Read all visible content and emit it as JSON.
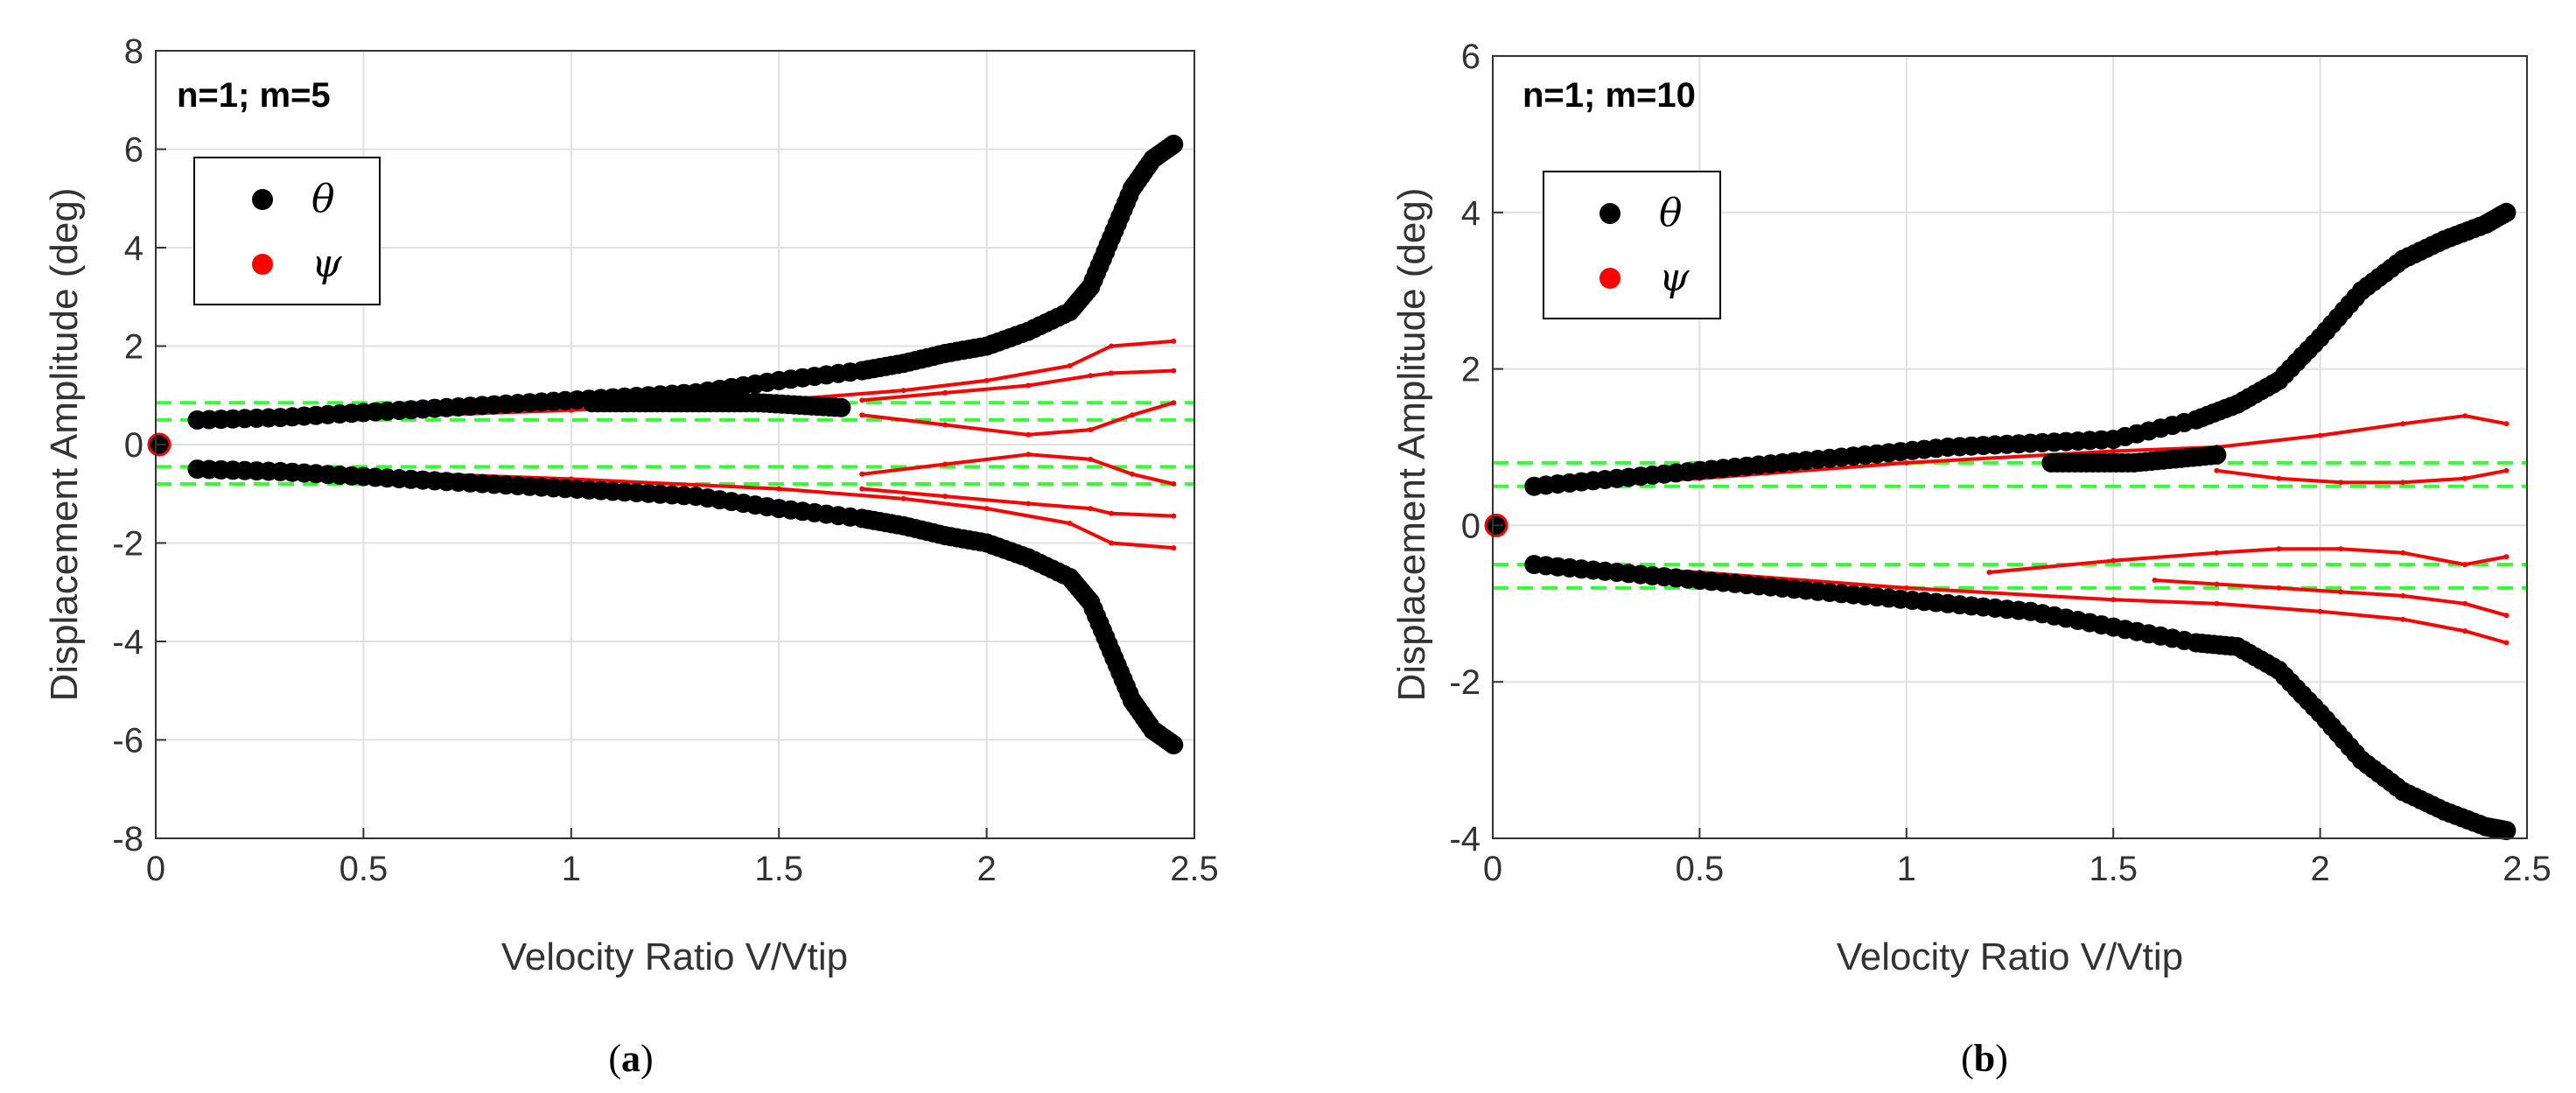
{
  "colors": {
    "theta": "#000000",
    "psi": "#ff0000",
    "bound": "#33ff33",
    "grid": "#e0e0e0",
    "axis": "#333333"
  },
  "chart_data": [
    {
      "type": "scatter",
      "panel_label": "a",
      "annotation": "n=1; m=5",
      "xlabel": "Velocity Ratio V/Vtip",
      "ylabel": "Displacement Amplitude (deg)",
      "xlim": [
        0,
        2.5
      ],
      "ylim": [
        -8,
        8
      ],
      "xticks": [
        0,
        0.5,
        1,
        1.5,
        2,
        2.5
      ],
      "xtick_labels": [
        "0",
        "0.5",
        "1",
        "1.5",
        "2",
        "2.5"
      ],
      "yticks": [
        -8,
        -6,
        -4,
        -2,
        0,
        2,
        4,
        6,
        8
      ],
      "ytick_labels": [
        "-8",
        "-6",
        "-4",
        "-2",
        "0",
        "2",
        "4",
        "6",
        "8"
      ],
      "grid": true,
      "legend": {
        "position": "upper-left",
        "entries": [
          "θ",
          "ψ"
        ]
      },
      "green_dashed_levels": [
        0.85,
        0.5,
        -0.45,
        -0.8
      ],
      "series": [
        {
          "name": "θ",
          "color": "#000000",
          "marker": "circle",
          "curves": [
            {
              "x": [
                0.1,
                0.3,
                0.5,
                0.7,
                0.9,
                1.1,
                1.3,
                1.5,
                1.7,
                1.8,
                1.9,
                2.0,
                2.1,
                2.2,
                2.25,
                2.3,
                2.35,
                2.4,
                2.45
              ],
              "y": [
                0.5,
                0.55,
                0.65,
                0.75,
                0.85,
                0.95,
                1.05,
                1.3,
                1.5,
                1.65,
                1.85,
                2.0,
                2.3,
                2.7,
                3.2,
                4.2,
                5.2,
                5.8,
                6.1
              ]
            },
            {
              "x": [
                0.1,
                0.3,
                0.5,
                0.7,
                0.9,
                1.1,
                1.3,
                1.5,
                1.7,
                1.8,
                1.9,
                2.0,
                2.1,
                2.2,
                2.25,
                2.3,
                2.35,
                2.4,
                2.45
              ],
              "y": [
                -0.5,
                -0.55,
                -0.65,
                -0.75,
                -0.85,
                -0.95,
                -1.05,
                -1.3,
                -1.5,
                -1.65,
                -1.85,
                -2.0,
                -2.3,
                -2.7,
                -3.2,
                -4.2,
                -5.2,
                -5.8,
                -6.1
              ]
            },
            {
              "x": [
                1.05,
                1.15,
                1.25,
                1.35,
                1.45,
                1.55,
                1.65
              ],
              "y": [
                0.85,
                0.85,
                0.85,
                0.85,
                0.85,
                0.8,
                0.75
              ]
            }
          ]
        },
        {
          "name": "ψ",
          "color": "#ff0000",
          "marker": "line",
          "curves": [
            {
              "x": [
                0.1,
                0.5,
                1.0,
                1.5,
                1.8,
                2.0,
                2.2,
                2.3,
                2.45
              ],
              "y": [
                0.5,
                0.55,
                0.7,
                0.9,
                1.1,
                1.3,
                1.6,
                2.0,
                2.1
              ]
            },
            {
              "x": [
                1.7,
                1.9,
                2.1,
                2.25,
                2.3,
                2.45
              ],
              "y": [
                0.9,
                1.05,
                1.2,
                1.4,
                1.45,
                1.5
              ]
            },
            {
              "x": [
                1.7,
                1.9,
                2.1,
                2.25,
                2.35,
                2.45
              ],
              "y": [
                0.6,
                0.4,
                0.2,
                0.3,
                0.6,
                0.85
              ]
            },
            {
              "x": [
                0.1,
                0.5,
                1.0,
                1.5,
                1.8,
                2.0,
                2.2,
                2.3,
                2.45
              ],
              "y": [
                -0.5,
                -0.55,
                -0.7,
                -0.9,
                -1.1,
                -1.3,
                -1.6,
                -2.0,
                -2.1
              ]
            },
            {
              "x": [
                1.7,
                1.9,
                2.1,
                2.25,
                2.3,
                2.45
              ],
              "y": [
                -0.9,
                -1.05,
                -1.2,
                -1.3,
                -1.4,
                -1.45
              ]
            },
            {
              "x": [
                1.7,
                1.9,
                2.1,
                2.25,
                2.35,
                2.45
              ],
              "y": [
                -0.6,
                -0.4,
                -0.2,
                -0.3,
                -0.6,
                -0.8
              ]
            }
          ]
        }
      ]
    },
    {
      "type": "scatter",
      "panel_label": "b",
      "annotation": "n=1; m=10",
      "xlabel": "Velocity Ratio V/Vtip",
      "ylabel": "Displacement Amplitude (deg)",
      "xlim": [
        0,
        2.5
      ],
      "ylim": [
        -4,
        6
      ],
      "xticks": [
        0,
        0.5,
        1,
        1.5,
        2,
        2.5
      ],
      "xtick_labels": [
        "0",
        "0.5",
        "1",
        "1.5",
        "2",
        "2.5"
      ],
      "yticks": [
        -4,
        -2,
        0,
        2,
        4,
        6
      ],
      "ytick_labels": [
        "-4",
        "-2",
        "0",
        "2",
        "4",
        "6"
      ],
      "grid": true,
      "legend": {
        "position": "upper-left",
        "entries": [
          "θ",
          "ψ"
        ]
      },
      "green_dashed_levels": [
        0.8,
        0.5,
        -0.5,
        -0.8
      ],
      "series": [
        {
          "name": "θ",
          "color": "#000000",
          "marker": "circle",
          "curves": [
            {
              "x": [
                0.1,
                0.3,
                0.5,
                0.7,
                0.9,
                1.1,
                1.3,
                1.5,
                1.7,
                1.8,
                1.9,
                2.0,
                2.1,
                2.2,
                2.3,
                2.4,
                2.45
              ],
              "y": [
                0.5,
                0.6,
                0.7,
                0.8,
                0.9,
                1.0,
                1.05,
                1.1,
                1.35,
                1.55,
                1.85,
                2.4,
                3.0,
                3.4,
                3.65,
                3.85,
                4.0
              ]
            },
            {
              "x": [
                0.1,
                0.3,
                0.5,
                0.7,
                0.9,
                1.1,
                1.3,
                1.5,
                1.7,
                1.8,
                1.9,
                2.0,
                2.1,
                2.2,
                2.3,
                2.4,
                2.45
              ],
              "y": [
                -0.5,
                -0.6,
                -0.7,
                -0.8,
                -0.9,
                -1.0,
                -1.1,
                -1.3,
                -1.5,
                -1.55,
                -1.85,
                -2.4,
                -3.0,
                -3.4,
                -3.65,
                -3.85,
                -3.9
              ]
            },
            {
              "x": [
                1.35,
                1.45,
                1.55,
                1.65,
                1.75
              ],
              "y": [
                0.8,
                0.8,
                0.8,
                0.85,
                0.9
              ]
            }
          ]
        },
        {
          "name": "ψ",
          "color": "#ff0000",
          "marker": "line",
          "curves": [
            {
              "x": [
                0.1,
                0.5,
                1.0,
                1.5,
                1.75,
                2.0,
                2.2,
                2.35,
                2.45
              ],
              "y": [
                0.5,
                0.6,
                0.8,
                0.95,
                1.0,
                1.15,
                1.3,
                1.4,
                1.3
              ]
            },
            {
              "x": [
                1.75,
                1.9,
                2.05,
                2.2,
                2.35,
                2.45
              ],
              "y": [
                0.7,
                0.6,
                0.55,
                0.55,
                0.6,
                0.7
              ]
            },
            {
              "x": [
                0.1,
                0.5,
                1.0,
                1.5,
                1.75,
                2.0,
                2.2,
                2.35,
                2.45
              ],
              "y": [
                -0.5,
                -0.6,
                -0.8,
                -0.95,
                -1.0,
                -1.1,
                -1.2,
                -1.35,
                -1.5
              ]
            },
            {
              "x": [
                1.2,
                1.5,
                1.75,
                1.9,
                2.05,
                2.2,
                2.35,
                2.45
              ],
              "y": [
                -0.6,
                -0.45,
                -0.35,
                -0.3,
                -0.3,
                -0.35,
                -0.5,
                -0.4
              ]
            },
            {
              "x": [
                1.6,
                1.75,
                1.9,
                2.05,
                2.2,
                2.35,
                2.45
              ],
              "y": [
                -0.7,
                -0.75,
                -0.8,
                -0.85,
                -0.9,
                -1.0,
                -1.15
              ]
            }
          ]
        }
      ]
    }
  ]
}
